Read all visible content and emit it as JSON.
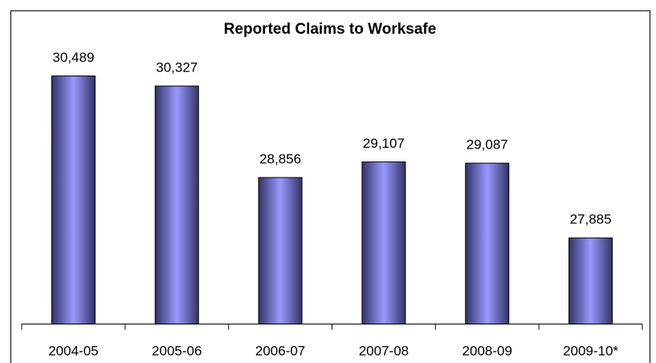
{
  "chart_data": {
    "type": "bar",
    "title": "Reported Claims to Worksafe",
    "categories": [
      "2004-05",
      "2005-06",
      "2006-07",
      "2007-08",
      "2008-09",
      "2009-10*"
    ],
    "values": [
      30489,
      30327,
      28856,
      29107,
      29087,
      27885
    ],
    "value_labels": [
      "30,489",
      "30,327",
      "28,856",
      "29,107",
      "29,087",
      "27,885"
    ],
    "color": "#9999ff",
    "ylim": [
      26500,
      31000
    ]
  }
}
